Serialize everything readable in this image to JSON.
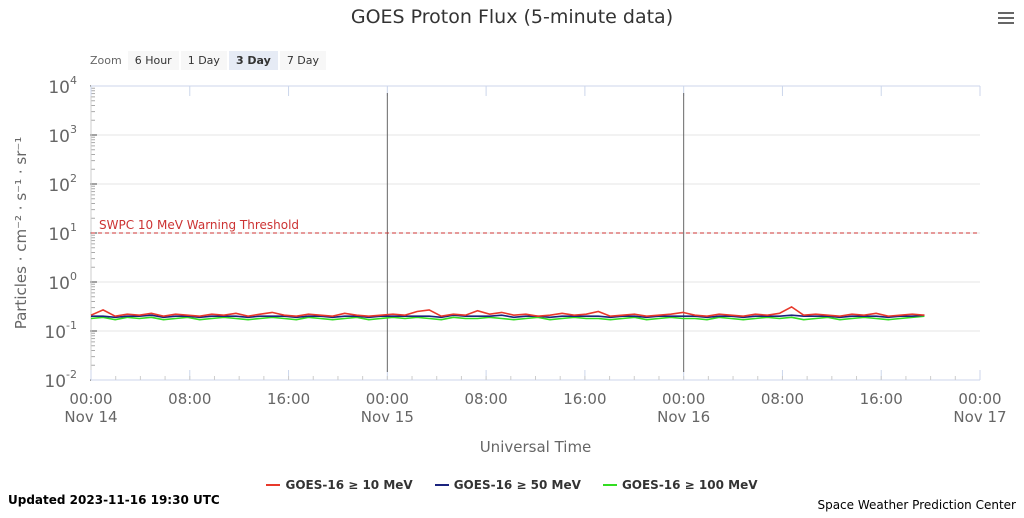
{
  "chart_data": {
    "type": "line",
    "title": "GOES Proton Flux (5-minute data)",
    "xlabel": "Universal Time",
    "ylabel": "Particles · cm⁻² · s⁻¹ · sr⁻¹",
    "yscale": "log",
    "ylim": [
      0.01,
      10000
    ],
    "y_ticks": [
      {
        "base": "10",
        "exp": "4"
      },
      {
        "base": "10",
        "exp": "3"
      },
      {
        "base": "10",
        "exp": "2"
      },
      {
        "base": "10",
        "exp": "1"
      },
      {
        "base": "10",
        "exp": "0"
      },
      {
        "base": "10",
        "exp": "-1"
      },
      {
        "base": "10",
        "exp": "-2"
      }
    ],
    "x_range_hours": [
      0,
      72
    ],
    "x_ticks": [
      {
        "t": "00:00",
        "d": "Nov 14"
      },
      {
        "t": "08:00",
        "d": ""
      },
      {
        "t": "16:00",
        "d": ""
      },
      {
        "t": "00:00",
        "d": "Nov 15"
      },
      {
        "t": "08:00",
        "d": ""
      },
      {
        "t": "16:00",
        "d": ""
      },
      {
        "t": "00:00",
        "d": "Nov 16"
      },
      {
        "t": "08:00",
        "d": ""
      },
      {
        "t": "16:00",
        "d": ""
      },
      {
        "t": "00:00",
        "d": "Nov 17"
      }
    ],
    "threshold": {
      "value": 10,
      "label": "SWPC 10 MeV Warning Threshold",
      "color": "#cc3333"
    },
    "x_interval_hours": 1,
    "series": [
      {
        "name": "GOES-16 ≥ 10 MeV",
        "color": "#e8392b",
        "values": [
          0.21,
          0.27,
          0.2,
          0.22,
          0.21,
          0.23,
          0.2,
          0.22,
          0.21,
          0.2,
          0.22,
          0.21,
          0.23,
          0.2,
          0.22,
          0.24,
          0.21,
          0.2,
          0.22,
          0.21,
          0.2,
          0.23,
          0.21,
          0.2,
          0.21,
          0.22,
          0.21,
          0.25,
          0.27,
          0.2,
          0.22,
          0.21,
          0.26,
          0.22,
          0.24,
          0.21,
          0.22,
          0.2,
          0.21,
          0.23,
          0.21,
          0.22,
          0.25,
          0.2,
          0.21,
          0.22,
          0.2,
          0.21,
          0.22,
          0.24,
          0.21,
          0.2,
          0.22,
          0.21,
          0.2,
          0.22,
          0.21,
          0.23,
          0.31,
          0.21,
          0.22,
          0.21,
          0.2,
          0.22,
          0.21,
          0.23,
          0.2,
          0.21,
          0.22,
          0.21
        ]
      },
      {
        "name": "GOES-16 ≥ 50 MeV",
        "color": "#1a237e",
        "values": [
          0.2,
          0.2,
          0.19,
          0.2,
          0.2,
          0.21,
          0.19,
          0.2,
          0.2,
          0.19,
          0.2,
          0.2,
          0.2,
          0.19,
          0.2,
          0.2,
          0.2,
          0.19,
          0.2,
          0.2,
          0.19,
          0.2,
          0.2,
          0.19,
          0.2,
          0.2,
          0.2,
          0.2,
          0.2,
          0.19,
          0.21,
          0.2,
          0.2,
          0.2,
          0.21,
          0.19,
          0.2,
          0.2,
          0.19,
          0.2,
          0.2,
          0.2,
          0.2,
          0.19,
          0.2,
          0.2,
          0.19,
          0.2,
          0.2,
          0.2,
          0.2,
          0.19,
          0.2,
          0.2,
          0.19,
          0.2,
          0.2,
          0.2,
          0.21,
          0.2,
          0.2,
          0.2,
          0.19,
          0.2,
          0.2,
          0.2,
          0.19,
          0.2,
          0.2,
          0.21
        ]
      },
      {
        "name": "GOES-16 ≥ 100 MeV",
        "color": "#33dd22",
        "values": [
          0.18,
          0.19,
          0.17,
          0.19,
          0.18,
          0.19,
          0.17,
          0.18,
          0.19,
          0.17,
          0.18,
          0.19,
          0.18,
          0.17,
          0.18,
          0.19,
          0.18,
          0.17,
          0.19,
          0.18,
          0.17,
          0.18,
          0.19,
          0.17,
          0.18,
          0.19,
          0.18,
          0.19,
          0.18,
          0.17,
          0.19,
          0.18,
          0.18,
          0.19,
          0.18,
          0.17,
          0.18,
          0.19,
          0.17,
          0.18,
          0.19,
          0.18,
          0.18,
          0.17,
          0.18,
          0.19,
          0.17,
          0.18,
          0.19,
          0.18,
          0.18,
          0.17,
          0.19,
          0.18,
          0.17,
          0.18,
          0.19,
          0.18,
          0.19,
          0.17,
          0.18,
          0.19,
          0.17,
          0.18,
          0.19,
          0.18,
          0.17,
          0.18,
          0.19,
          0.2
        ]
      }
    ]
  },
  "zoom": {
    "label": "Zoom",
    "buttons": [
      "6 Hour",
      "1 Day",
      "3 Day",
      "7 Day"
    ],
    "selected": "3 Day"
  },
  "footer": {
    "updated": "Updated 2023-11-16 19:30 UTC",
    "credit": "Space Weather Prediction Center"
  }
}
